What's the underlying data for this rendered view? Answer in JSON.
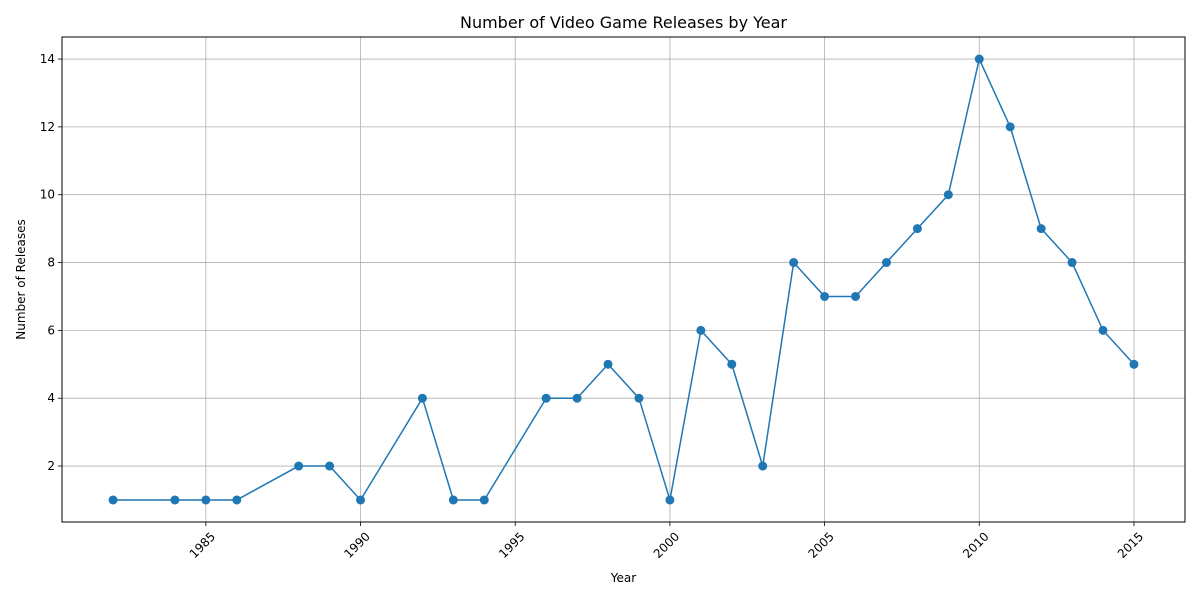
{
  "chart_data": {
    "type": "line",
    "title": "Number of Video Game Releases by Year",
    "xlabel": "Year",
    "ylabel": "Number of Releases",
    "x": [
      1982,
      1984,
      1985,
      1986,
      1988,
      1989,
      1990,
      1992,
      1993,
      1994,
      1996,
      1997,
      1998,
      1999,
      2000,
      2001,
      2002,
      2003,
      2004,
      2005,
      2006,
      2007,
      2008,
      2009,
      2010,
      2011,
      2012,
      2013,
      2014,
      2015
    ],
    "series": [
      {
        "values": [
          1,
          1,
          1,
          1,
          2,
          2,
          1,
          4,
          1,
          1,
          4,
          4,
          5,
          4,
          1,
          6,
          5,
          2,
          8,
          7,
          7,
          8,
          9,
          10,
          14,
          12,
          9,
          8,
          6,
          5
        ],
        "color": "#1f77b4",
        "marker": "circle"
      }
    ],
    "xticks": [
      1985,
      1990,
      1995,
      2000,
      2005,
      2010,
      2015
    ],
    "yticks": [
      2,
      4,
      6,
      8,
      10,
      12,
      14
    ],
    "xlim": [
      1980.35,
      2016.65
    ],
    "ylim": [
      0.35,
      14.65
    ],
    "xtick_rotation": 45,
    "grid": true
  }
}
